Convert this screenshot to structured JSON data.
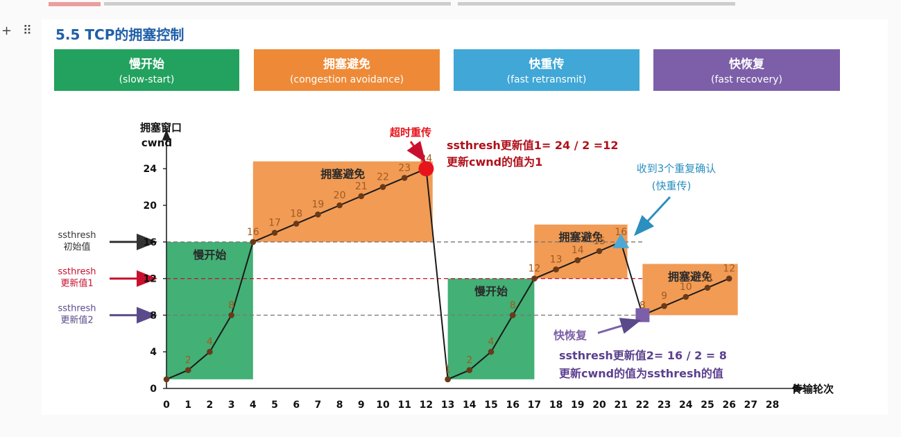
{
  "header": {
    "top_text": "......................................................",
    "section_title": "5.5 TCP的拥塞控制",
    "toolbar": {
      "add_icon": "+",
      "drag_icon": "⠿"
    }
  },
  "phases": [
    {
      "zh": "慢开始",
      "en": "(slow-start)",
      "color": "#22a25e"
    },
    {
      "zh": "拥塞避免",
      "en": "(congestion avoidance)",
      "color": "#ee8a37"
    },
    {
      "zh": "快重传",
      "en": "(fast retransmit)",
      "color": "#40a7d6"
    },
    {
      "zh": "快恢复",
      "en": "(fast recovery)",
      "color": "#7c5fa8"
    }
  ],
  "chart_data": {
    "type": "line",
    "ylabel_zh": "拥塞窗口",
    "ylabel_en": "cwnd",
    "xlabel": "传输轮次",
    "xlim": [
      0,
      28
    ],
    "ylim": [
      0,
      24
    ],
    "xticks": [
      0,
      1,
      2,
      3,
      4,
      5,
      6,
      7,
      8,
      9,
      10,
      11,
      12,
      13,
      14,
      15,
      16,
      17,
      18,
      19,
      20,
      21,
      22,
      23,
      24,
      25,
      26,
      27,
      28
    ],
    "yticks": [
      0,
      4,
      8,
      12,
      16,
      20,
      24
    ],
    "series": [
      {
        "x": [
          0,
          1,
          2,
          3,
          4,
          5,
          6,
          7,
          8,
          9,
          10,
          11,
          12
        ],
        "y": [
          1,
          2,
          4,
          8,
          16,
          17,
          18,
          19,
          20,
          21,
          22,
          23,
          24
        ]
      },
      {
        "x": [
          12,
          13
        ],
        "y": [
          24,
          1
        ]
      },
      {
        "x": [
          13,
          14,
          15,
          16,
          17,
          18,
          19,
          20,
          21
        ],
        "y": [
          1,
          2,
          4,
          8,
          12,
          13,
          14,
          15,
          16
        ]
      },
      {
        "x": [
          21,
          22
        ],
        "y": [
          16,
          8
        ]
      },
      {
        "x": [
          22,
          23,
          24,
          25,
          26
        ],
        "y": [
          8,
          9,
          10,
          11,
          12
        ]
      }
    ],
    "point_labels": [
      {
        "x": 1,
        "y": 2,
        "text": "2"
      },
      {
        "x": 2,
        "y": 4,
        "text": "4"
      },
      {
        "x": 3,
        "y": 8,
        "text": "8"
      },
      {
        "x": 4,
        "y": 16,
        "text": "16"
      },
      {
        "x": 5,
        "y": 17,
        "text": "17"
      },
      {
        "x": 6,
        "y": 18,
        "text": "18"
      },
      {
        "x": 7,
        "y": 19,
        "text": "19"
      },
      {
        "x": 8,
        "y": 20,
        "text": "20"
      },
      {
        "x": 9,
        "y": 21,
        "text": "21"
      },
      {
        "x": 10,
        "y": 22,
        "text": "22"
      },
      {
        "x": 11,
        "y": 23,
        "text": "23"
      },
      {
        "x": 12,
        "y": 24,
        "text": "24"
      },
      {
        "x": 13,
        "y": 1,
        "text": "1"
      },
      {
        "x": 14,
        "y": 2,
        "text": "2"
      },
      {
        "x": 15,
        "y": 4,
        "text": "4"
      },
      {
        "x": 16,
        "y": 8,
        "text": "8"
      },
      {
        "x": 17,
        "y": 12,
        "text": "12"
      },
      {
        "x": 18,
        "y": 13,
        "text": "13"
      },
      {
        "x": 19,
        "y": 14,
        "text": "14"
      },
      {
        "x": 20,
        "y": 15,
        "text": "15"
      },
      {
        "x": 21,
        "y": 16,
        "text": "16"
      },
      {
        "x": 22,
        "y": 8,
        "text": "8"
      },
      {
        "x": 23,
        "y": 9,
        "text": "9"
      },
      {
        "x": 24,
        "y": 10,
        "text": "10"
      },
      {
        "x": 25,
        "y": 11,
        "text": "11"
      },
      {
        "x": 26,
        "y": 12,
        "text": "12"
      }
    ],
    "regions": [
      {
        "label": "慢开始",
        "x0": 0,
        "x1": 4,
        "y0": 1,
        "y1": 16,
        "color": "#22a25e"
      },
      {
        "label": "拥塞避免",
        "x0": 4,
        "x1": 12.3,
        "y0": 16,
        "y1": 24.8,
        "color": "#ee8a37"
      },
      {
        "label": "慢开始",
        "x0": 13,
        "x1": 17,
        "y0": 1,
        "y1": 12,
        "color": "#22a25e"
      },
      {
        "label": "拥塞避免",
        "x0": 17,
        "x1": 21.3,
        "y0": 12,
        "y1": 17.9,
        "color": "#ee8a37"
      },
      {
        "label": "拥塞避免",
        "x0": 22,
        "x1": 26.4,
        "y0": 8,
        "y1": 13.6,
        "color": "#ee8a37"
      }
    ],
    "thresholds": [
      {
        "y": 16,
        "label": [
          "ssthresh",
          "初始值"
        ],
        "color": "#333333"
      },
      {
        "y": 12,
        "label": [
          "ssthresh",
          "更新值1"
        ],
        "color": "#c8102e"
      },
      {
        "y": 8,
        "label": [
          "ssthresh",
          "更新值2"
        ],
        "color": "#5b4a8b"
      }
    ],
    "annotations": {
      "timeout": {
        "label": "超时重传",
        "x": 12,
        "y": 24,
        "color": "#e8141c"
      },
      "timeout_note": [
        "ssthresh更新值1= 24 / 2 =12",
        "更新cwnd的值为1"
      ],
      "dupack": {
        "label": [
          "收到3个重复确认",
          "(快重传)"
        ],
        "x": 21,
        "y": 16,
        "color": "#2b8fbf"
      },
      "fast_recovery": {
        "label": "快恢复",
        "x": 22,
        "y": 8,
        "color": "#7c5fa8"
      },
      "fast_recovery_note": [
        "ssthresh更新值2= 16 / 2 = 8",
        "更新cwnd的值为ssthresh的值"
      ]
    },
    "colors": {
      "line": "#1e5e34",
      "axis": "#222222",
      "point_label": "#a05a1f",
      "dash": "#888888"
    }
  }
}
